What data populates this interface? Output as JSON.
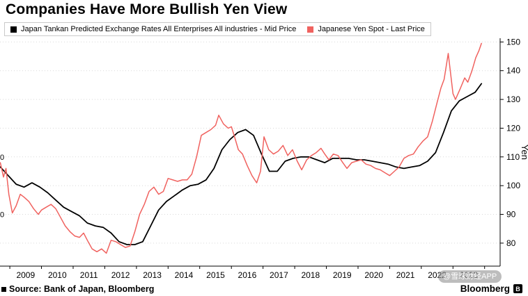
{
  "title": "Companies Have More Bullish Yen View",
  "watermark": {
    "text": "@雪球财经APP"
  },
  "footer": {
    "source": "Source: Bank of Japan, Bloomberg",
    "brand": "Bloomberg",
    "logo_letter": "B"
  },
  "chart_data": {
    "type": "line",
    "title": "Companies Have More Bullish Yen View",
    "xlabel": "",
    "ylabel": "Yen",
    "grid": "horizontal dotted",
    "legend_position": "top-left",
    "xlim": [
      2008.69,
      2024.49
    ],
    "ylim": [
      72,
      151.3
    ],
    "yticks": [
      80,
      90,
      100,
      110,
      120,
      130,
      140,
      150
    ],
    "xtick_start": 2009,
    "xtick_labels": [
      "2009",
      "2010",
      "2011",
      "2012",
      "2013",
      "2014",
      "2015",
      "2016",
      "2017",
      "2018",
      "2019",
      "2020",
      "2021",
      "2022",
      "2023"
    ],
    "left_edge_partial_labels": [
      {
        "text": "0",
        "value": 110
      },
      {
        "text": "0",
        "value": 90
      }
    ],
    "series": [
      {
        "name": "Japan Tankan Predicted Exchange Rates All Enterprises All industries - Mid Price",
        "color": "#000000",
        "stroke_width": 1.8,
        "x": [
          2008.7,
          2008.95,
          2009.2,
          2009.45,
          2009.7,
          2009.95,
          2010.2,
          2010.45,
          2010.7,
          2010.95,
          2011.2,
          2011.45,
          2011.7,
          2011.95,
          2012.2,
          2012.45,
          2012.7,
          2012.95,
          2013.2,
          2013.45,
          2013.7,
          2013.95,
          2014.2,
          2014.45,
          2014.7,
          2014.95,
          2015.2,
          2015.45,
          2015.7,
          2015.95,
          2016.2,
          2016.45,
          2016.7,
          2016.95,
          2017.2,
          2017.45,
          2017.7,
          2017.95,
          2018.2,
          2018.45,
          2018.7,
          2018.95,
          2019.2,
          2019.45,
          2019.7,
          2019.95,
          2020.2,
          2020.45,
          2020.7,
          2020.95,
          2021.2,
          2021.45,
          2021.7,
          2021.95,
          2022.2,
          2022.45,
          2022.7,
          2022.95,
          2023.2,
          2023.45,
          2023.7,
          2023.9
        ],
        "y": [
          106.5,
          103.5,
          100.5,
          99.5,
          101,
          99.5,
          97.5,
          95,
          92.5,
          91,
          89.5,
          87,
          86,
          85.5,
          83.5,
          80.5,
          79.5,
          79.5,
          80.5,
          86,
          91.5,
          94.5,
          96.5,
          98.5,
          100,
          100.5,
          102,
          106,
          112.5,
          116,
          118.5,
          119.5,
          117.5,
          111,
          105,
          105,
          108.5,
          109.5,
          110,
          110,
          109,
          108,
          109.5,
          109.5,
          109.5,
          109,
          109,
          108.5,
          108,
          107.5,
          106.5,
          106,
          106.5,
          107,
          108.5,
          111.5,
          118.5,
          126,
          129.5,
          131,
          132.5,
          135.5
        ]
      },
      {
        "name": "Japanese Yen Spot - Last Price",
        "color": "#f0625f",
        "stroke_width": 1.5,
        "x": [
          2008.7,
          2008.8,
          2008.88,
          2008.97,
          2009.08,
          2009.2,
          2009.33,
          2009.45,
          2009.6,
          2009.75,
          2009.9,
          2010.0,
          2010.15,
          2010.3,
          2010.45,
          2010.6,
          2010.75,
          2010.9,
          2011.05,
          2011.2,
          2011.33,
          2011.45,
          2011.6,
          2011.75,
          2011.9,
          2012.05,
          2012.2,
          2012.35,
          2012.5,
          2012.65,
          2012.8,
          2012.95,
          2013.1,
          2013.25,
          2013.4,
          2013.55,
          2013.7,
          2013.85,
          2014.0,
          2014.15,
          2014.3,
          2014.45,
          2014.6,
          2014.75,
          2014.9,
          2015.05,
          2015.2,
          2015.35,
          2015.5,
          2015.6,
          2015.75,
          2015.9,
          2016.0,
          2016.1,
          2016.22,
          2016.35,
          2016.5,
          2016.65,
          2016.8,
          2016.92,
          2017.03,
          2017.18,
          2017.33,
          2017.48,
          2017.63,
          2017.78,
          2017.93,
          2018.08,
          2018.22,
          2018.38,
          2018.53,
          2018.68,
          2018.83,
          2018.95,
          2019.08,
          2019.22,
          2019.37,
          2019.52,
          2019.65,
          2019.8,
          2019.95,
          2020.1,
          2020.25,
          2020.4,
          2020.55,
          2020.7,
          2020.85,
          2021.0,
          2021.15,
          2021.3,
          2021.45,
          2021.6,
          2021.75,
          2021.9,
          2022.05,
          2022.2,
          2022.35,
          2022.5,
          2022.62,
          2022.72,
          2022.85,
          2023.0,
          2023.08,
          2023.22,
          2023.37,
          2023.47,
          2023.6,
          2023.72,
          2023.82,
          2023.9
        ],
        "y": [
          108,
          103,
          106,
          97,
          90.5,
          93,
          97,
          96,
          94.5,
          92,
          90,
          91.5,
          92.5,
          93.5,
          92,
          89,
          86,
          84,
          82.5,
          82,
          83.5,
          81,
          78,
          77,
          78,
          76.5,
          81,
          80.5,
          79.5,
          78.5,
          79,
          84,
          90,
          93.5,
          98,
          99.5,
          97,
          98,
          102.5,
          102,
          101.5,
          102,
          102,
          104,
          110,
          117.5,
          118.5,
          119.5,
          121,
          124.5,
          121.5,
          120,
          120.5,
          117,
          112.5,
          111,
          107,
          103.5,
          101,
          105,
          117,
          112.5,
          111,
          112,
          114,
          110.5,
          112.5,
          108.5,
          105.5,
          109,
          110.5,
          111.5,
          113,
          111,
          109,
          111,
          110.5,
          108,
          106,
          108,
          108.5,
          109,
          107.5,
          107,
          106,
          105.5,
          104.5,
          103.5,
          105,
          106.5,
          109.5,
          110.5,
          111,
          113.5,
          115.5,
          117,
          122.5,
          129,
          134,
          137,
          146,
          132,
          130,
          133.5,
          137.5,
          136,
          140,
          144.5,
          147,
          149.5
        ]
      }
    ]
  }
}
